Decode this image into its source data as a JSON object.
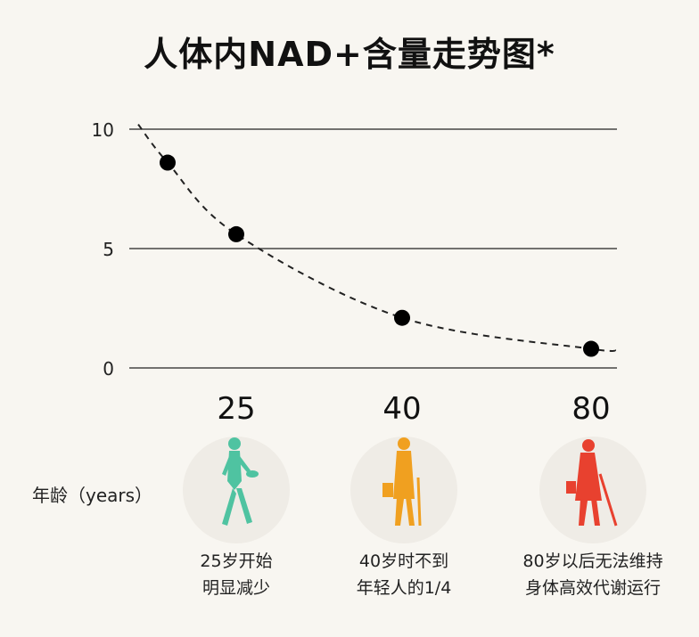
{
  "title": "人体内NAD+含量走势图*",
  "xlabel": "年龄（years）",
  "chart_data": {
    "type": "line",
    "title": "人体内NAD+含量走势图*",
    "xlabel": "年龄（years）",
    "ylabel": "",
    "yticks": [
      "0",
      "5",
      "10"
    ],
    "ylim": [
      0,
      10
    ],
    "categories": [
      "25",
      "40",
      "80"
    ],
    "points": [
      {
        "x": "",
        "y": 8.6
      },
      {
        "x": "25",
        "y": 5.6
      },
      {
        "x": "40",
        "y": 2.1
      },
      {
        "x": "80",
        "y": 0.8
      }
    ],
    "grid": true
  },
  "stages": [
    {
      "age": "25",
      "caption_lines": [
        "25岁开始",
        "明显减少"
      ],
      "color": "#4fc3a1"
    },
    {
      "age": "40",
      "caption_lines": [
        "40岁时不到",
        "年轻人的1/4"
      ],
      "color": "#f0a020"
    },
    {
      "age": "80",
      "caption_lines": [
        "80岁以后无法维持",
        "身体高效代谢运行"
      ],
      "color": "#e8412f"
    }
  ]
}
